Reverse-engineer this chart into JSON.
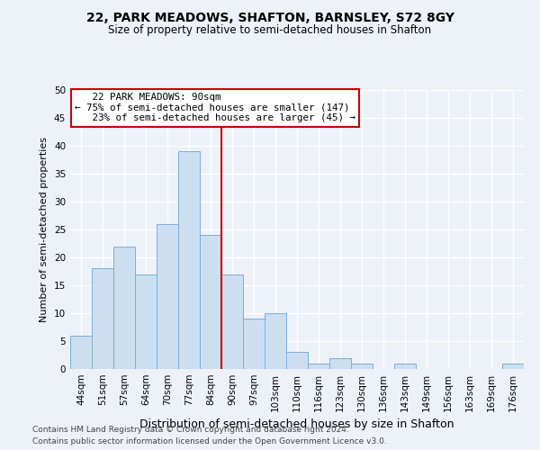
{
  "title1": "22, PARK MEADOWS, SHAFTON, BARNSLEY, S72 8GY",
  "title2": "Size of property relative to semi-detached houses in Shafton",
  "xlabel": "Distribution of semi-detached houses by size in Shafton",
  "ylabel": "Number of semi-detached properties",
  "categories": [
    "44sqm",
    "51sqm",
    "57sqm",
    "64sqm",
    "70sqm",
    "77sqm",
    "84sqm",
    "90sqm",
    "97sqm",
    "103sqm",
    "110sqm",
    "116sqm",
    "123sqm",
    "130sqm",
    "136sqm",
    "143sqm",
    "149sqm",
    "156sqm",
    "163sqm",
    "169sqm",
    "176sqm"
  ],
  "values": [
    6,
    18,
    22,
    17,
    26,
    39,
    24,
    17,
    9,
    10,
    3,
    1,
    2,
    1,
    0,
    1,
    0,
    0,
    0,
    0,
    1
  ],
  "bar_color": "#ccdff0",
  "bar_edge_color": "#7aafd4",
  "ref_line_label": "22 PARK MEADOWS: 90sqm",
  "smaller_pct": "75%",
  "smaller_n": 147,
  "larger_pct": "23%",
  "larger_n": 45,
  "ylim": [
    0,
    50
  ],
  "yticks": [
    0,
    5,
    10,
    15,
    20,
    25,
    30,
    35,
    40,
    45,
    50
  ],
  "footer1": "Contains HM Land Registry data © Crown copyright and database right 2024.",
  "footer2": "Contains public sector information licensed under the Open Government Licence v3.0.",
  "bg_color": "#edf2f9",
  "plot_bg_color": "#edf2f9",
  "grid_color": "#ffffff",
  "annotation_box_color": "#ffffff",
  "annotation_box_edge": "#cc0000",
  "ref_line_color": "#cc0000",
  "title1_fontsize": 10,
  "title2_fontsize": 8.5,
  "ylabel_fontsize": 8,
  "xlabel_fontsize": 9,
  "tick_fontsize": 7.5,
  "footer_fontsize": 6.5,
  "annot_fontsize": 7.8
}
